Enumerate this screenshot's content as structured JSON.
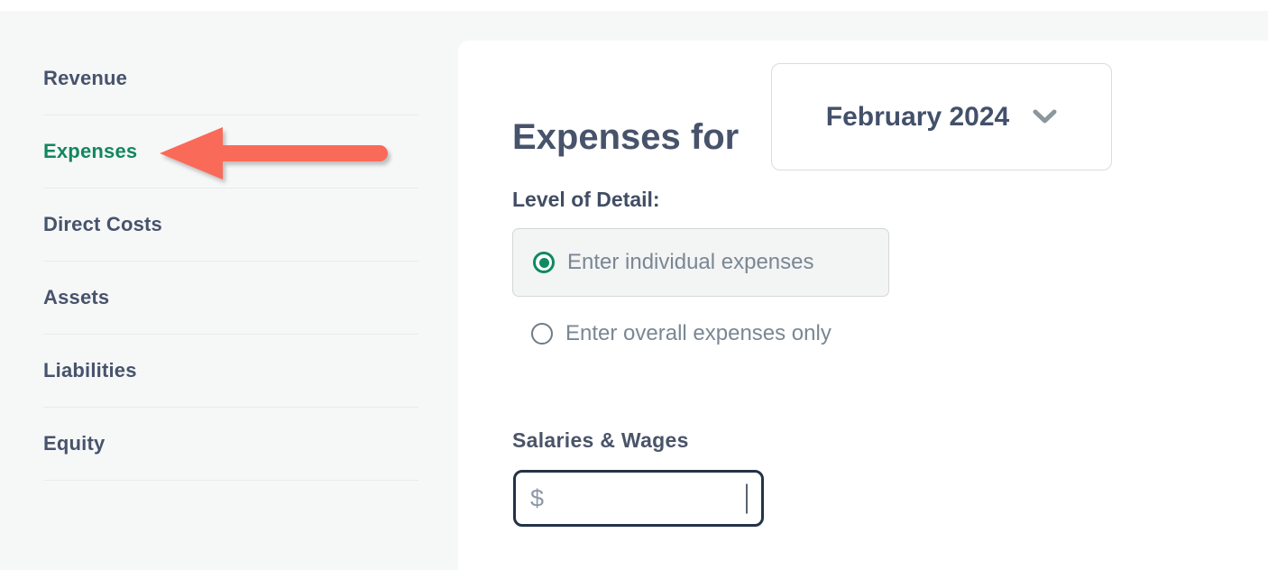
{
  "sidebar": {
    "items": [
      {
        "label": "Revenue",
        "active": false
      },
      {
        "label": "Expenses",
        "active": true
      },
      {
        "label": "Direct Costs",
        "active": false
      },
      {
        "label": "Assets",
        "active": false
      },
      {
        "label": "Liabilities",
        "active": false
      },
      {
        "label": "Equity",
        "active": false
      }
    ]
  },
  "annotation": {
    "arrow_icon": "red-arrow-pointing-left-at-expenses",
    "arrow_color": "#fa6a58"
  },
  "main": {
    "heading": "Expenses for",
    "month_selector": {
      "value": "February 2024",
      "chevron_icon": "chevron-down-icon"
    },
    "level_of_detail": {
      "label": "Level of Detail:",
      "options": [
        {
          "label": "Enter individual expenses",
          "selected": true
        },
        {
          "label": "Enter overall expenses only",
          "selected": false
        }
      ]
    },
    "expense_field": {
      "label": "Salaries & Wages",
      "currency_symbol": "$",
      "value": "",
      "placeholder": ""
    }
  },
  "colors": {
    "background": "#f6f7f7",
    "panel": "#ffffff",
    "sidebar_text": "#47536b",
    "sidebar_active_green": "#12875e",
    "radio_accent_green": "#0f8a5f",
    "arrow_red": "#fa6a58",
    "input_border_navy": "#243247",
    "muted_text": "#7a8794"
  }
}
